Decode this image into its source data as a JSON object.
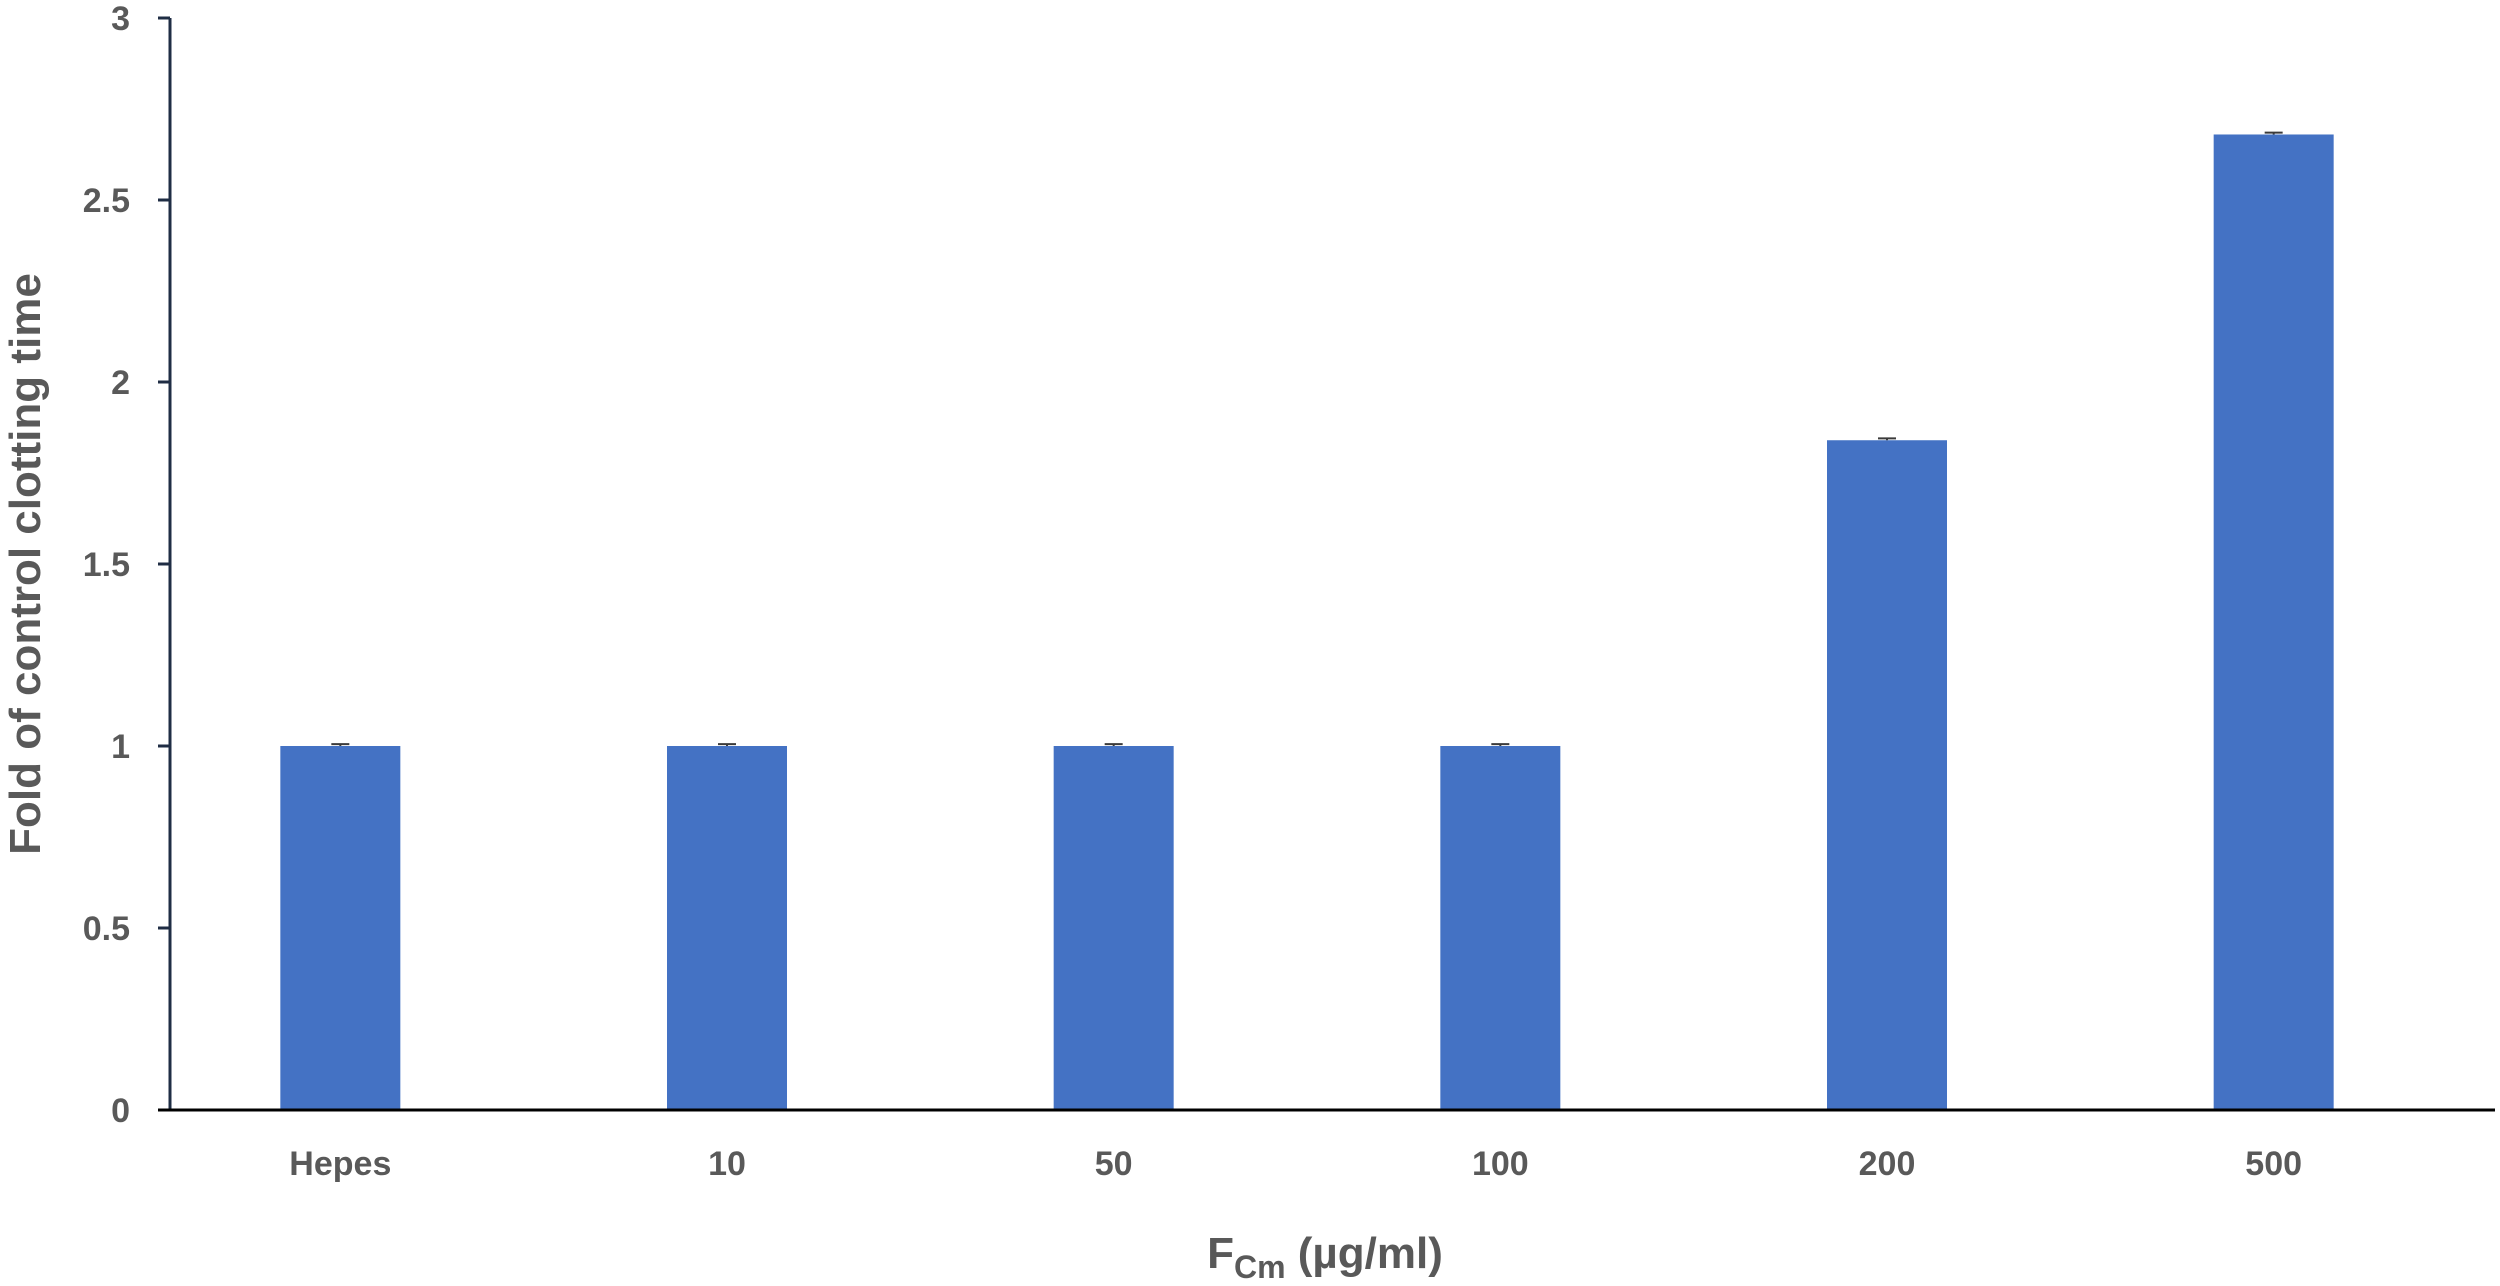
{
  "chart_data": {
    "type": "bar",
    "categories": [
      "Hepes",
      "10",
      "50",
      "100",
      "200",
      "500"
    ],
    "series": [
      {
        "values": [
          1.0,
          1.0,
          1.0,
          1.0,
          1.84,
          2.68
        ],
        "error": [
          0.005,
          0.005,
          0.005,
          0.005,
          0.005,
          0.005
        ]
      }
    ],
    "title": "",
    "xlabel_main": "F",
    "xlabel_sub": "Cm",
    "xlabel_rest": " (µg/ml)",
    "ylabel": "Fold of control clotting time",
    "ylim": [
      0,
      3
    ],
    "yticks": [
      0,
      0.5,
      1,
      1.5,
      2,
      2.5,
      3
    ],
    "ytick_labels": [
      "0",
      "0.5",
      "1",
      "1.5",
      "2",
      "2.5",
      "3"
    ],
    "grid": false,
    "legend": "none",
    "bar_color": "#4472C4",
    "axis_color": "#1F2D44",
    "text_color": "#595959"
  }
}
